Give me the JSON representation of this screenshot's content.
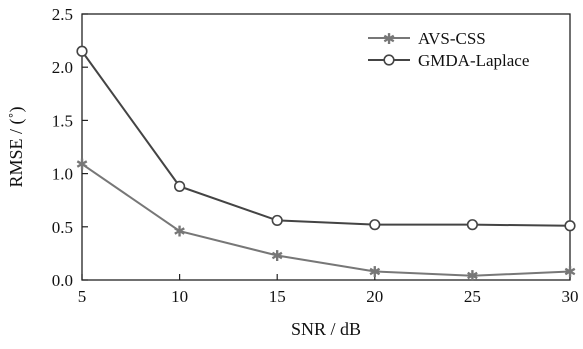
{
  "chart_data": {
    "type": "line",
    "xlabel": "SNR / dB",
    "ylabel": "RMSE / (˚)",
    "x": [
      5,
      10,
      15,
      20,
      25,
      30
    ],
    "xlim": [
      5,
      30
    ],
    "ylim": [
      0,
      2.5
    ],
    "xticks": [
      "5",
      "10",
      "15",
      "20",
      "25",
      "30"
    ],
    "yticks": [
      "0.0",
      "0.5",
      "1.0",
      "1.5",
      "2.0",
      "2.5"
    ],
    "grid": false,
    "legend_position": "top-right",
    "series": [
      {
        "name": "AVS-CSS",
        "marker": "star",
        "color": "#777777",
        "values": [
          1.09,
          0.46,
          0.23,
          0.08,
          0.04,
          0.08
        ]
      },
      {
        "name": "GMDA-Laplace",
        "marker": "circle",
        "color": "#444444",
        "values": [
          2.15,
          0.88,
          0.56,
          0.52,
          0.52,
          0.51
        ]
      }
    ]
  }
}
